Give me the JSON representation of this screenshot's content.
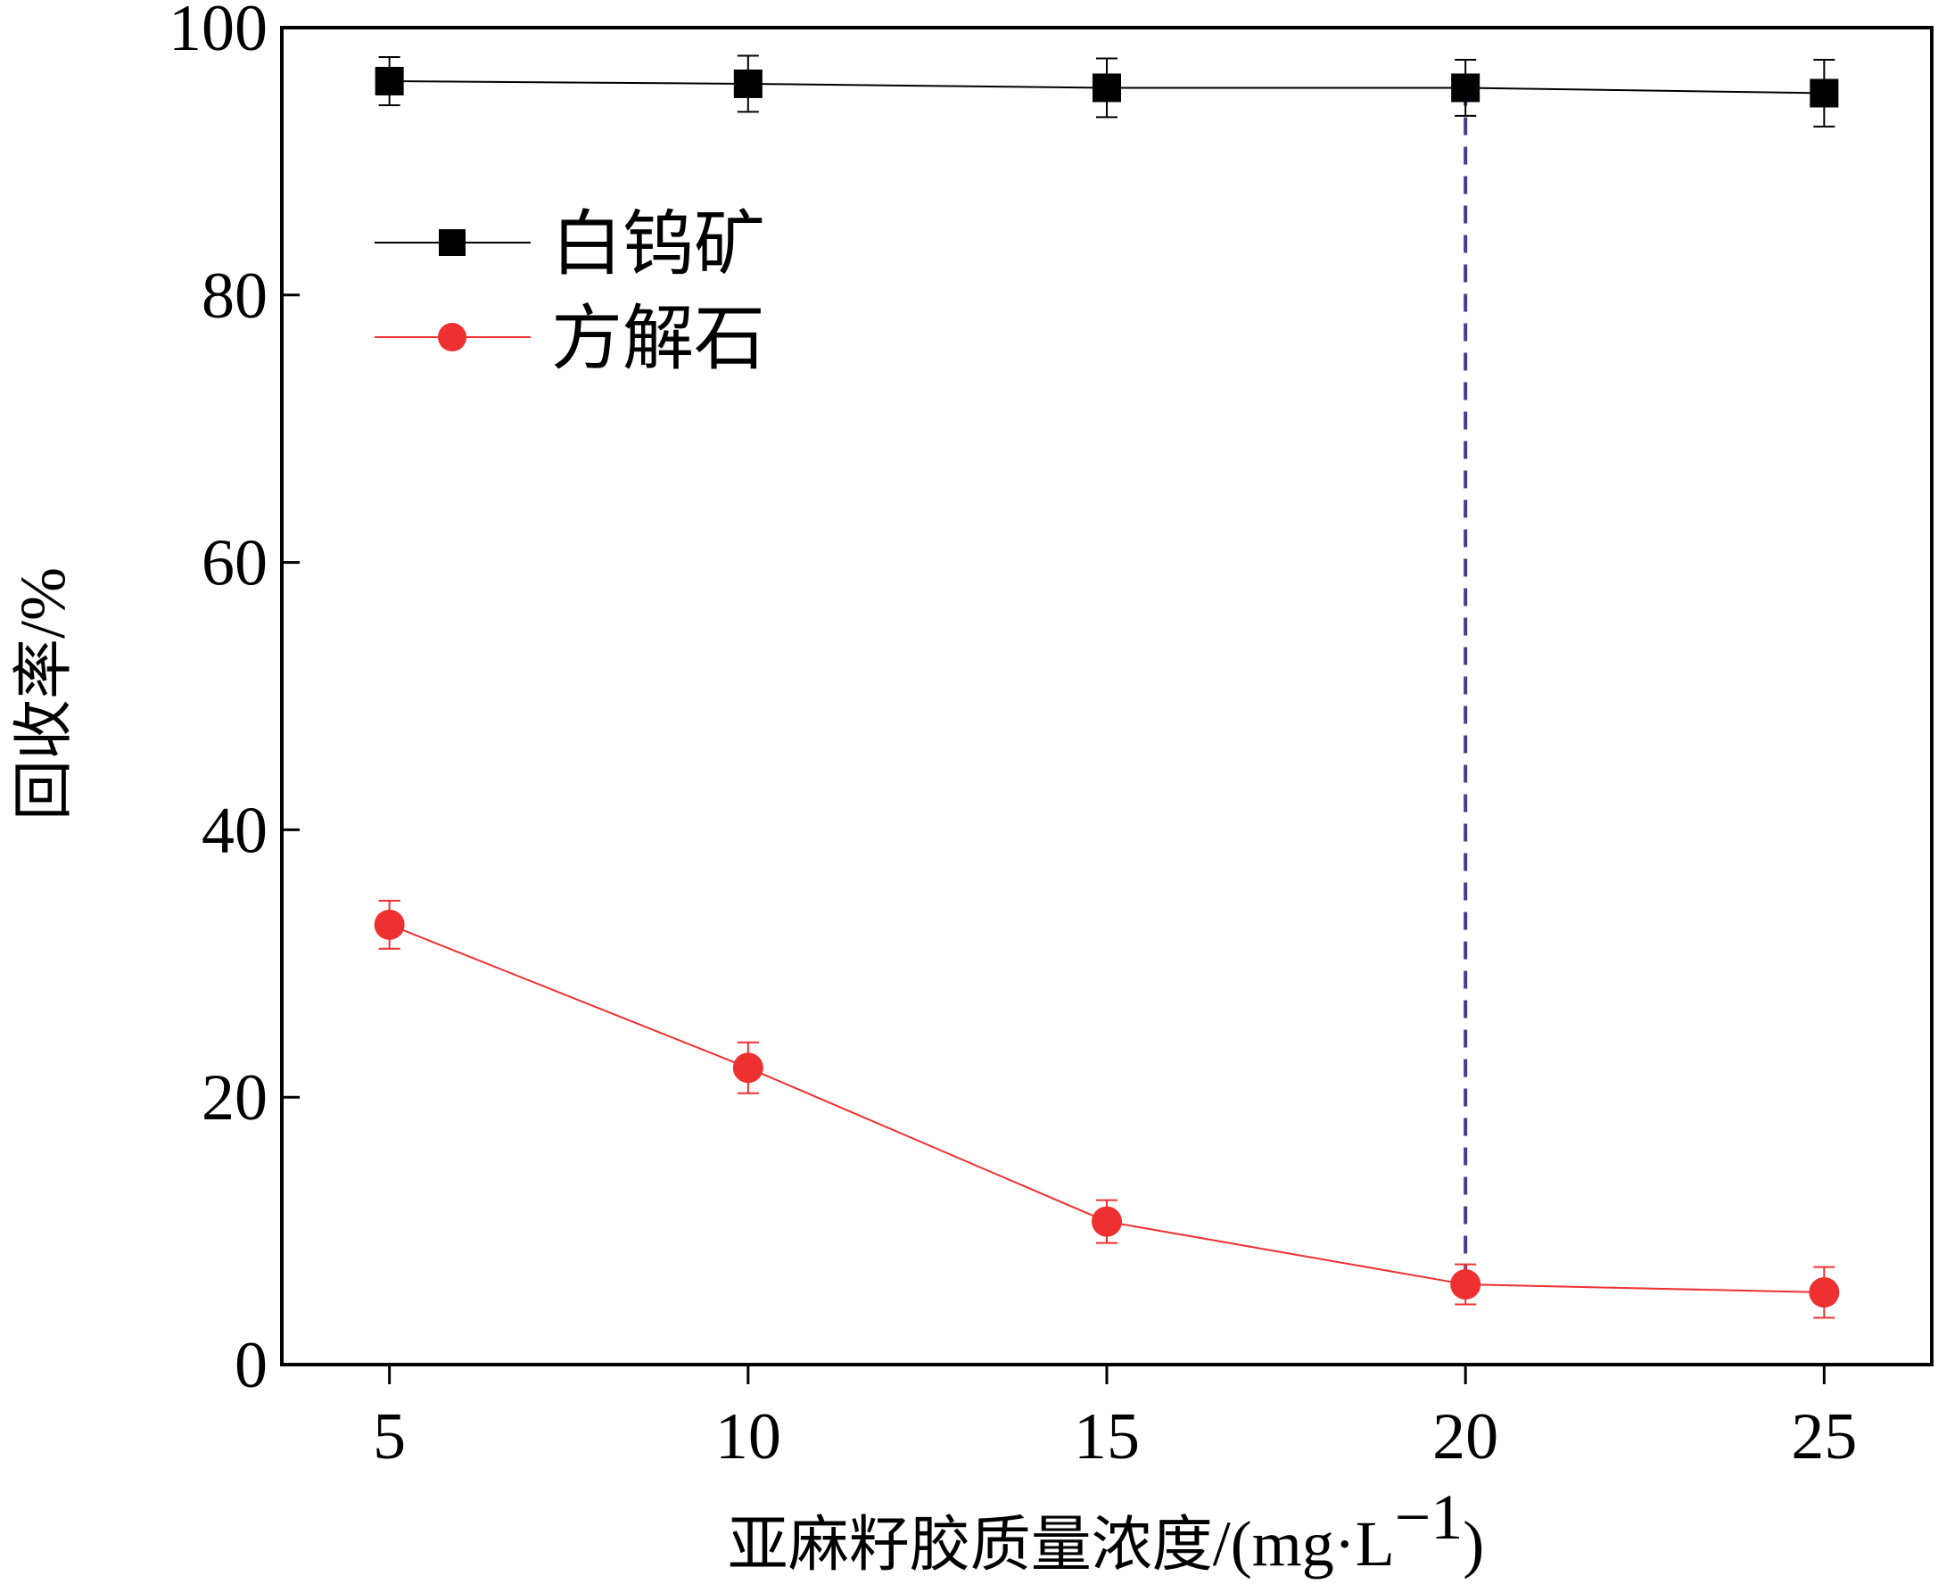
{
  "chart_data": {
    "type": "line",
    "title": "",
    "x": [
      5,
      10,
      15,
      20,
      25
    ],
    "xlim": [
      3.5,
      26.5
    ],
    "ylim": [
      0,
      100
    ],
    "xticks": [
      "5",
      "10",
      "15",
      "20",
      "25"
    ],
    "yticks": [
      "0",
      "20",
      "40",
      "60",
      "80",
      "100"
    ],
    "xlabel": "亚麻籽胶质量浓度/(mg·L⁻¹)",
    "xlabel_parts": {
      "cn": "亚麻籽胶质量浓度",
      "unit_open": "/(mg·L",
      "sup": "−1",
      "unit_close": ")"
    },
    "ylabel_parts": {
      "cn": "回收率",
      "unit": "/%"
    },
    "reference_line": {
      "x": 20,
      "y_from": 6,
      "y_to": 95.5,
      "style": "dashed",
      "color": "#4b3a8f"
    },
    "legend_position": "upper-left",
    "series": [
      {
        "name": "白钨矿",
        "marker": "square",
        "color": "#000000",
        "values": [
          96,
          95.8,
          95.5,
          95.5,
          95.1
        ],
        "errors": [
          1.8,
          2.1,
          2.2,
          2.1,
          2.5
        ]
      },
      {
        "name": "方解石",
        "marker": "circle",
        "color": "#ee3030",
        "values": [
          32.9,
          22.2,
          10.7,
          6.0,
          5.4
        ],
        "errors": [
          1.8,
          1.9,
          1.6,
          1.5,
          1.9
        ]
      }
    ]
  }
}
